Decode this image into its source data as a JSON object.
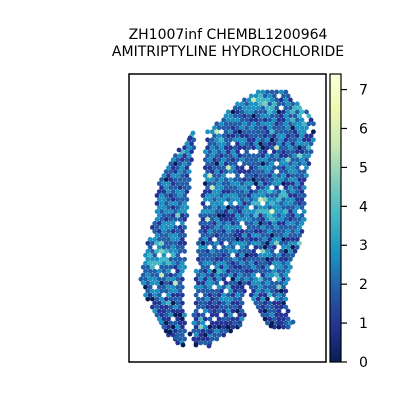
{
  "chart_data": {
    "type": "scatter",
    "title_line1": "ZH1007inf CHEMBL1200964",
    "title_line2": "AMITRIPTYLINE HYDROCHLORIDE",
    "xlabel": "",
    "ylabel": "",
    "colorbar": {
      "colormap": "YlGnBu",
      "min": 0,
      "max": 7.4,
      "ticks": [
        0,
        1,
        2,
        3,
        4,
        5,
        6,
        7
      ],
      "tick_labels": [
        "0",
        "1",
        "2",
        "3",
        "4",
        "5",
        "6",
        "7"
      ]
    },
    "colors": {
      "c0": "#081d58",
      "c1": "#253494",
      "c2": "#225ea8",
      "c3": "#1d91c0",
      "c4": "#41b6c4",
      "c5": "#7fcdbb",
      "c6": "#c7e9b4",
      "c7": "#edf8b1",
      "c8": "#ffffd9"
    },
    "grid": false,
    "legend": "colorbar-right"
  }
}
